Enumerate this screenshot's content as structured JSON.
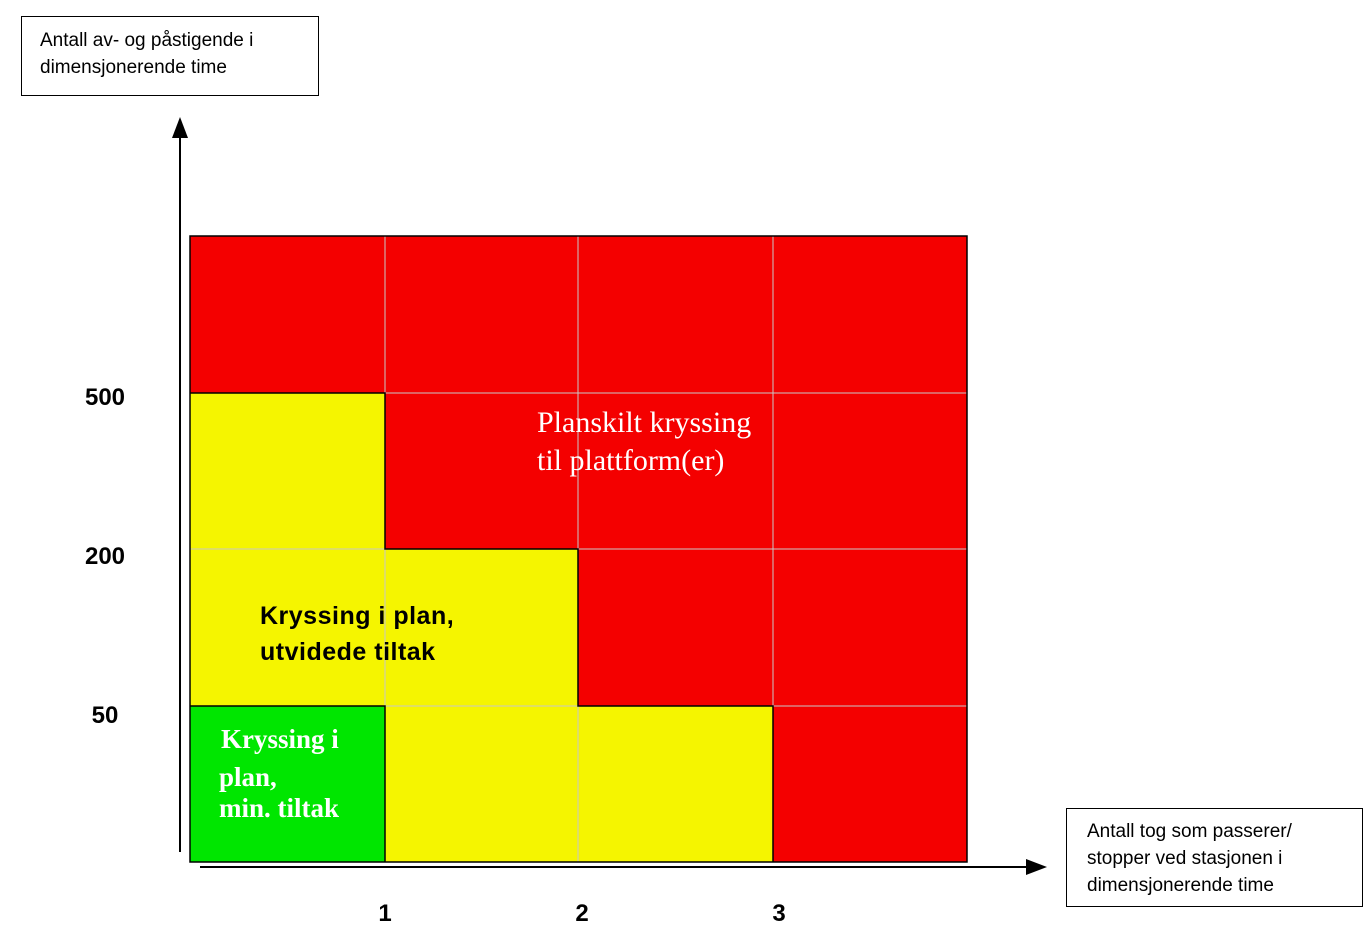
{
  "y_axis_title": [
    "Antall av- og påstigende i",
    "dimensjonerende time"
  ],
  "x_axis_title": [
    "Antall tog som passerer/",
    "stopper ved stasjonen i",
    "dimensjonerende time"
  ],
  "y_ticks": [
    "500",
    "200",
    "50"
  ],
  "x_ticks": [
    "1",
    "2",
    "3"
  ],
  "zones": {
    "red": [
      "Planskilt kryssing",
      "til plattform(er)"
    ],
    "yellow": [
      "Kryssing i plan,",
      "utvidede tiltak"
    ],
    "green": [
      "Kryssing i",
      "plan,",
      "min. tiltak"
    ]
  },
  "colors": {
    "red": "#f40000",
    "yellow": "#f5f500",
    "green": "#00e600",
    "grid": "#c8c8c8"
  },
  "grid": {
    "columns": 4,
    "rows": 4,
    "cells_top_to_bottom": [
      [
        "red",
        "red",
        "red",
        "red"
      ],
      [
        "yellow",
        "red",
        "red",
        "red"
      ],
      [
        "yellow",
        "yellow",
        "red",
        "red"
      ],
      [
        "green",
        "yellow",
        "yellow",
        "red"
      ]
    ]
  }
}
